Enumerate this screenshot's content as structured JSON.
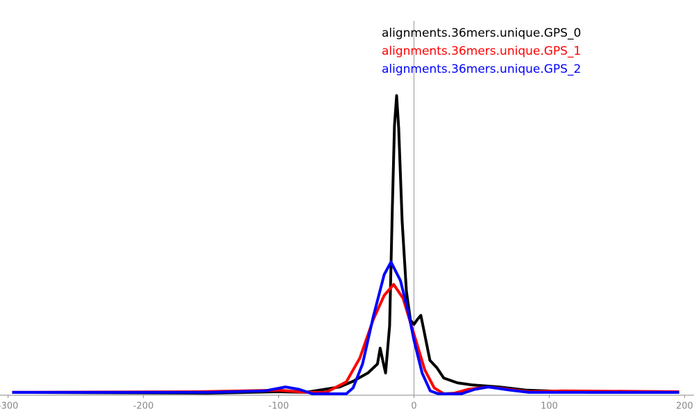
{
  "chart_data": {
    "type": "line",
    "xlim": [
      -306,
      207
    ],
    "ylim": [
      0,
      100
    ],
    "xticks": [
      -300,
      -200,
      -100,
      0,
      100,
      200
    ],
    "grid": false,
    "legend": "top-right",
    "series": [
      {
        "name": "alignments.36mers.unique.GPS_0",
        "color": "#000000",
        "x": [
          -297,
          -152,
          -101,
          -80,
          -55,
          -45,
          -34,
          -27,
          -25,
          -23,
          -21,
          -18,
          -16,
          -14.4,
          -12.8,
          -11.3,
          -8.7,
          -5.6,
          -2.6,
          0,
          2.6,
          5.1,
          7.7,
          11.8,
          16.9,
          22,
          32,
          42.6,
          63,
          83.6,
          130,
          196
        ],
        "values": [
          0.5,
          0.2,
          0.7,
          0.5,
          2.3,
          4.2,
          7,
          10,
          15.3,
          11,
          7,
          22.8,
          62,
          90,
          100,
          89,
          57.7,
          34.4,
          24.7,
          23.3,
          25,
          26.3,
          20.5,
          11.2,
          8.8,
          5.3,
          3.7,
          3,
          2.3,
          1.2,
          0.5,
          0.5
        ]
      },
      {
        "name": "alignments.36mers.unique.GPS_1",
        "color": "#ff0000",
        "x": [
          -297,
          -160,
          -100,
          -80,
          -65,
          -50,
          -40,
          -30,
          -22,
          -15,
          -8,
          0,
          8,
          15,
          22,
          30,
          40,
          55,
          70,
          85,
          110,
          196
        ],
        "values": [
          0.5,
          0.7,
          1.2,
          0.5,
          0.5,
          4,
          12,
          25,
          33,
          36.7,
          32,
          20,
          8,
          2,
          0,
          0.2,
          1.5,
          2.3,
          1.5,
          0.7,
          1,
          0.7
        ]
      },
      {
        "name": "alignments.36mers.unique.GPS_2",
        "color": "#0000ff",
        "x": [
          -297,
          -150,
          -110,
          -95,
          -85,
          -75,
          -50,
          -45,
          -38,
          -30,
          -22,
          -17,
          -10,
          -4,
          0,
          6,
          12,
          18,
          35,
          45,
          55,
          70,
          85,
          196
        ],
        "values": [
          0.5,
          0.5,
          1,
          2.3,
          1.5,
          0,
          0,
          2,
          10,
          26,
          40,
          44.2,
          38,
          27,
          18,
          7,
          1,
          0,
          0,
          1.5,
          2.3,
          1.3,
          0.5,
          0.5
        ]
      }
    ]
  }
}
